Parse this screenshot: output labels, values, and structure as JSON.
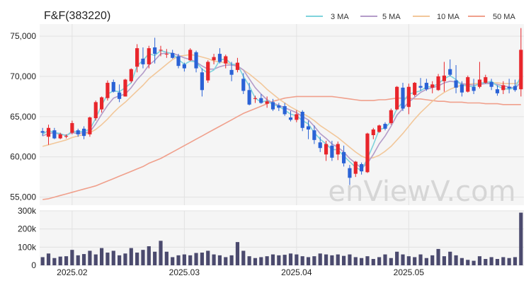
{
  "chart_data": {
    "type": "candlestick",
    "title": "F&F(383220)",
    "watermark": "enViewV.com",
    "legend": [
      {
        "name": "3 MA",
        "color": "#7fd3dc"
      },
      {
        "name": "5 MA",
        "color": "#b49cc9"
      },
      {
        "name": "10 MA",
        "color": "#f2c79a"
      },
      {
        "name": "50 MA",
        "color": "#f0a08c"
      }
    ],
    "up_color": "#e8252b",
    "down_color": "#2a62d6",
    "volume_color": "#4b4a6e",
    "price_axis": {
      "ylim": [
        54000,
        76500
      ],
      "ticks": [
        55000,
        60000,
        65000,
        70000,
        75000
      ],
      "tick_labels": [
        "55,000",
        "60,000",
        "65,000",
        "70,000",
        "75,000"
      ]
    },
    "volume_axis": {
      "ylim": [
        0,
        300000
      ],
      "ticks": [
        0,
        100000,
        200000,
        300000
      ],
      "tick_labels": [
        "0",
        "100k",
        "200k",
        "300k"
      ]
    },
    "x_labels": [
      {
        "label": "2025.02",
        "index": 5
      },
      {
        "label": "2025.03",
        "index": 24
      },
      {
        "label": "2025.04",
        "index": 43
      },
      {
        "label": "2025.05",
        "index": 62
      }
    ],
    "candles": [
      [
        63200,
        63600,
        62600,
        63000
      ],
      [
        62500,
        64000,
        61500,
        63600
      ],
      [
        63300,
        63600,
        62200,
        62300
      ],
      [
        62300,
        63000,
        62200,
        62800
      ],
      [
        62500,
        62800,
        62300,
        62600
      ],
      [
        63000,
        64500,
        62800,
        64200
      ],
      [
        63300,
        63500,
        62500,
        62800
      ],
      [
        63500,
        63800,
        62200,
        62600
      ],
      [
        62800,
        65000,
        62500,
        64900
      ],
      [
        64800,
        67000,
        64500,
        66800
      ],
      [
        65900,
        67500,
        65500,
        67400
      ],
      [
        67300,
        69500,
        67000,
        69200
      ],
      [
        69300,
        69600,
        68000,
        68100
      ],
      [
        68000,
        69000,
        66800,
        67200
      ],
      [
        67500,
        69700,
        67500,
        69600
      ],
      [
        69400,
        71000,
        69200,
        70900
      ],
      [
        71200,
        74000,
        70500,
        73500
      ],
      [
        72200,
        73600,
        71000,
        71500
      ],
      [
        71500,
        73800,
        71000,
        73500
      ],
      [
        73600,
        74800,
        71600,
        72800
      ],
      [
        73300,
        73800,
        72500,
        73300
      ],
      [
        72800,
        73400,
        72300,
        72800
      ],
      [
        72900,
        73300,
        72200,
        72300
      ],
      [
        72500,
        72800,
        71000,
        71300
      ],
      [
        71500,
        71700,
        70600,
        71000
      ],
      [
        72000,
        73500,
        71900,
        73300
      ],
      [
        73000,
        73200,
        70500,
        71000
      ],
      [
        70500,
        71000,
        67500,
        68300
      ],
      [
        69500,
        72000,
        69200,
        71800
      ],
      [
        72000,
        72800,
        71500,
        72400
      ],
      [
        72800,
        73500,
        71600,
        71800
      ],
      [
        71600,
        72700,
        71000,
        72500
      ],
      [
        70800,
        71800,
        69400,
        70200
      ],
      [
        70800,
        72300,
        70500,
        71700
      ],
      [
        69700,
        70400,
        67800,
        68200
      ],
      [
        68300,
        69200,
        66400,
        66500
      ],
      [
        67200,
        67600,
        66700,
        67300
      ],
      [
        67300,
        67800,
        66600,
        66700
      ],
      [
        66600,
        67500,
        66100,
        66900
      ],
      [
        66800,
        67200,
        65700,
        65900
      ],
      [
        66400,
        66700,
        65700,
        66100
      ],
      [
        66300,
        66700,
        65100,
        65300
      ],
      [
        64900,
        65700,
        64400,
        64600
      ],
      [
        64600,
        65800,
        64300,
        65300
      ],
      [
        65600,
        65800,
        63200,
        63600
      ],
      [
        63800,
        64500,
        62200,
        63400
      ],
      [
        63300,
        63900,
        61600,
        62100
      ],
      [
        61800,
        62500,
        60600,
        61100
      ],
      [
        60300,
        62000,
        59500,
        61600
      ],
      [
        61400,
        62000,
        59500,
        59900
      ],
      [
        60300,
        61900,
        59600,
        61600
      ],
      [
        60600,
        61400,
        58800,
        59200
      ],
      [
        58600,
        59000,
        56500,
        57400
      ],
      [
        57900,
        59500,
        57500,
        59400
      ],
      [
        59100,
        59300,
        57800,
        58200
      ],
      [
        58100,
        63000,
        58000,
        62900
      ],
      [
        62700,
        63600,
        62200,
        63400
      ],
      [
        63100,
        64000,
        63000,
        63900
      ],
      [
        64100,
        64300,
        63300,
        63500
      ],
      [
        64200,
        66000,
        64000,
        65800
      ],
      [
        65900,
        68800,
        65800,
        68700
      ],
      [
        68600,
        69200,
        65700,
        66000
      ],
      [
        66200,
        69100,
        65300,
        68700
      ],
      [
        67700,
        69300,
        67500,
        69200
      ],
      [
        68800,
        69800,
        68200,
        68600
      ],
      [
        69200,
        69700,
        68200,
        68400
      ],
      [
        68600,
        69400,
        67900,
        69000
      ],
      [
        68300,
        70300,
        68200,
        70000
      ],
      [
        69400,
        71800,
        68100,
        70100
      ],
      [
        70900,
        72100,
        70000,
        70200
      ],
      [
        69500,
        71400,
        67900,
        68600
      ],
      [
        69000,
        69400,
        67500,
        68000
      ],
      [
        68100,
        70100,
        68000,
        69900
      ],
      [
        68700,
        69700,
        67800,
        68200
      ],
      [
        68700,
        71800,
        68500,
        69600
      ],
      [
        69200,
        70200,
        69100,
        69900
      ],
      [
        69300,
        69700,
        68300,
        68700
      ],
      [
        68400,
        68900,
        67600,
        67900
      ],
      [
        68300,
        69400,
        67800,
        68900
      ],
      [
        68700,
        69700,
        67900,
        68500
      ],
      [
        68800,
        69600,
        68100,
        68300
      ],
      [
        68400,
        76000,
        67500,
        73300
      ]
    ],
    "volume": [
      45000,
      65000,
      40000,
      48000,
      50000,
      85000,
      55000,
      62000,
      80000,
      60000,
      95000,
      70000,
      80000,
      55000,
      65000,
      95000,
      70000,
      85000,
      105000,
      75000,
      135000,
      75000,
      45000,
      55000,
      60000,
      55000,
      68000,
      70000,
      80000,
      60000,
      55000,
      45000,
      55000,
      128000,
      80000,
      50000,
      40000,
      45000,
      50000,
      60000,
      55000,
      58000,
      65000,
      60000,
      50000,
      45000,
      50000,
      65000,
      60000,
      55000,
      60000,
      52000,
      60000,
      45000,
      40000,
      50000,
      35000,
      45000,
      60000,
      40000,
      75000,
      60000,
      50000,
      45000,
      60000,
      40000,
      55000,
      90000,
      50000,
      75000,
      55000,
      40000,
      30000,
      25000,
      50000,
      35000,
      45000,
      35000,
      45000,
      40000,
      45000,
      290000
    ],
    "ma3": [
      62800,
      63300,
      63000,
      62900,
      62600,
      63200,
      63100,
      63200,
      63400,
      64800,
      66400,
      67800,
      68200,
      68100,
      68600,
      69200,
      71300,
      72000,
      72800,
      72600,
      73200,
      73000,
      72800,
      72100,
      71500,
      71900,
      71800,
      70900,
      70400,
      70800,
      72000,
      72200,
      71500,
      71500,
      70000,
      68800,
      67300,
      66800,
      67000,
      66500,
      66300,
      65800,
      65300,
      65100,
      64500,
      64100,
      63000,
      62200,
      61600,
      60900,
      60900,
      60100,
      59400,
      58700,
      58300,
      59800,
      61500,
      63400,
      63600,
      64400,
      66000,
      66800,
      67800,
      68000,
      68200,
      68700,
      68700,
      69100,
      69700,
      70100,
      69600,
      68900,
      68800,
      68700,
      69200,
      69200,
      69400,
      68800,
      68500,
      68400,
      68600,
      70000
    ],
    "ma5": [
      62600,
      62900,
      63000,
      62800,
      62700,
      63000,
      62900,
      63000,
      63100,
      64100,
      65300,
      66400,
      67300,
      67600,
      67800,
      68600,
      69600,
      70400,
      71400,
      72000,
      72800,
      72900,
      72900,
      72600,
      72300,
      72100,
      71800,
      71300,
      70900,
      70900,
      71200,
      71400,
      71400,
      71300,
      70800,
      69700,
      68600,
      67800,
      67100,
      66700,
      66400,
      66100,
      65800,
      65500,
      65000,
      64600,
      63800,
      62900,
      62300,
      61600,
      61200,
      60600,
      59800,
      59200,
      58600,
      59200,
      60300,
      61600,
      62600,
      63800,
      65200,
      66000,
      66800,
      67400,
      68000,
      68400,
      68600,
      68800,
      69200,
      69400,
      69300,
      69100,
      69000,
      68900,
      69000,
      69100,
      69100,
      69000,
      68800,
      68700,
      68500,
      69300
    ],
    "ma10": [
      61300,
      61500,
      61700,
      61900,
      62100,
      62400,
      62600,
      62800,
      63000,
      63400,
      64000,
      64700,
      65500,
      66200,
      66800,
      67500,
      68200,
      68900,
      69700,
      70300,
      70900,
      71500,
      72100,
      72500,
      72600,
      72700,
      72600,
      72400,
      72200,
      71900,
      71800,
      71700,
      71500,
      71200,
      70800,
      70300,
      69700,
      69100,
      68400,
      67800,
      67200,
      66700,
      66200,
      65800,
      65400,
      65000,
      64500,
      63900,
      63400,
      62900,
      62400,
      61800,
      61200,
      60600,
      60100,
      59800,
      59900,
      60200,
      60700,
      61300,
      62100,
      62900,
      63800,
      64700,
      65500,
      66200,
      66900,
      67500,
      68000,
      68400,
      68700,
      68900,
      69000,
      69100,
      69100,
      69200,
      69200,
      69200,
      69100,
      69100,
      69100,
      69400
    ],
    "ma50": [
      54700,
      54800,
      55000,
      55200,
      55400,
      55600,
      55800,
      56000,
      56200,
      56400,
      56700,
      57000,
      57300,
      57600,
      57900,
      58200,
      58500,
      58800,
      59200,
      59500,
      59800,
      60200,
      60600,
      61000,
      61400,
      61800,
      62200,
      62600,
      63000,
      63400,
      63800,
      64200,
      64600,
      65000,
      65400,
      65700,
      66000,
      66300,
      66600,
      66900,
      67100,
      67300,
      67400,
      67500,
      67500,
      67500,
      67500,
      67500,
      67500,
      67500,
      67400,
      67300,
      67200,
      67100,
      67000,
      67000,
      67000,
      67100,
      67100,
      67200,
      67300,
      67300,
      67300,
      67200,
      67200,
      67100,
      67000,
      66900,
      66900,
      66800,
      66800,
      66800,
      66700,
      66700,
      66700,
      66600,
      66600,
      66600,
      66500,
      66500,
      66500,
      66500
    ]
  }
}
